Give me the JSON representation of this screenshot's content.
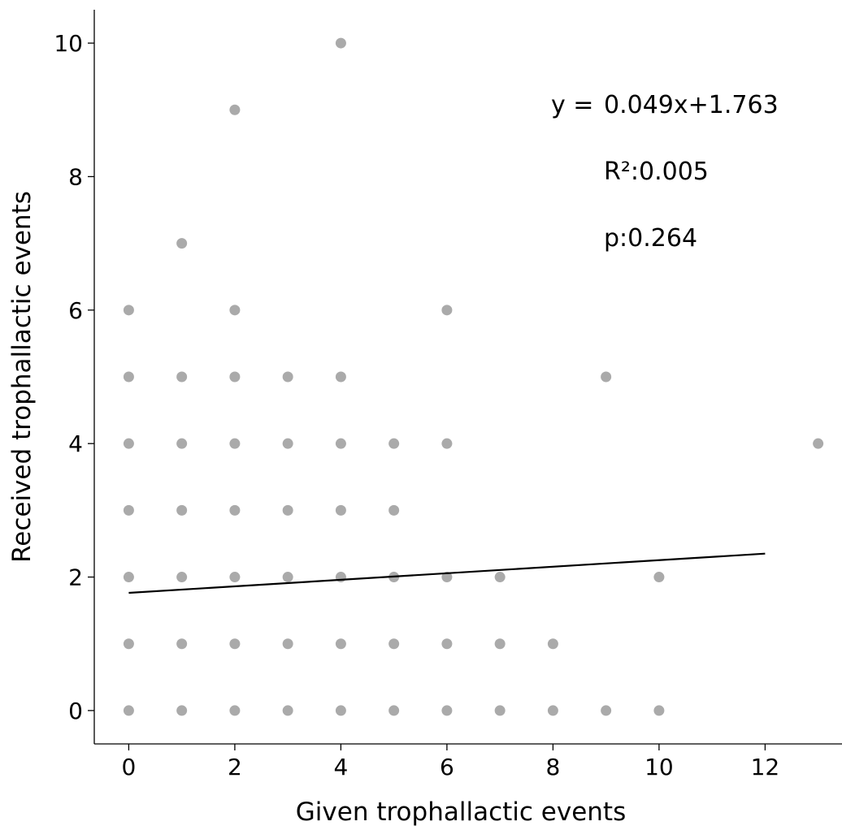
{
  "chart_data": {
    "type": "scatter",
    "xlabel": "Given trophallactic events",
    "ylabel": "Received trophallactic events",
    "xlim": [
      -0.65,
      13.45
    ],
    "ylim": [
      -0.5,
      10.5
    ],
    "xticks": [
      "0",
      "2",
      "4",
      "6",
      "8",
      "10",
      "12"
    ],
    "yticks": [
      "0",
      "2",
      "4",
      "6",
      "8",
      "10"
    ],
    "grid": false,
    "point_color": "#aaaaaa",
    "line_color": "#000000",
    "series": [
      {
        "points": [
          [
            0,
            0
          ],
          [
            0,
            1
          ],
          [
            0,
            2
          ],
          [
            0,
            3
          ],
          [
            0,
            4
          ],
          [
            0,
            5
          ],
          [
            0,
            6
          ],
          [
            1,
            0
          ],
          [
            1,
            1
          ],
          [
            1,
            2
          ],
          [
            1,
            3
          ],
          [
            1,
            4
          ],
          [
            1,
            5
          ],
          [
            1,
            7
          ],
          [
            2,
            0
          ],
          [
            2,
            1
          ],
          [
            2,
            2
          ],
          [
            2,
            3
          ],
          [
            2,
            4
          ],
          [
            2,
            5
          ],
          [
            2,
            6
          ],
          [
            2,
            9
          ],
          [
            3,
            0
          ],
          [
            3,
            1
          ],
          [
            3,
            2
          ],
          [
            3,
            3
          ],
          [
            3,
            4
          ],
          [
            3,
            5
          ],
          [
            4,
            0
          ],
          [
            4,
            1
          ],
          [
            4,
            2
          ],
          [
            4,
            3
          ],
          [
            4,
            4
          ],
          [
            4,
            5
          ],
          [
            4,
            10
          ],
          [
            5,
            0
          ],
          [
            5,
            1
          ],
          [
            5,
            2
          ],
          [
            5,
            3
          ],
          [
            5,
            4
          ],
          [
            6,
            0
          ],
          [
            6,
            1
          ],
          [
            6,
            2
          ],
          [
            6,
            4
          ],
          [
            6,
            6
          ],
          [
            7,
            0
          ],
          [
            7,
            1
          ],
          [
            7,
            2
          ],
          [
            8,
            0
          ],
          [
            8,
            1
          ],
          [
            9,
            0
          ],
          [
            9,
            5
          ],
          [
            10,
            0
          ],
          [
            10,
            2
          ],
          [
            13,
            4
          ]
        ]
      }
    ],
    "fit_line": {
      "slope": 0.049,
      "intercept": 1.763,
      "x_range": [
        0,
        12
      ]
    },
    "annotations": {
      "equation_prefix": "y =",
      "equation": "0.049x+1.763",
      "r2": "R²:0.005",
      "p": "p:0.264"
    }
  }
}
